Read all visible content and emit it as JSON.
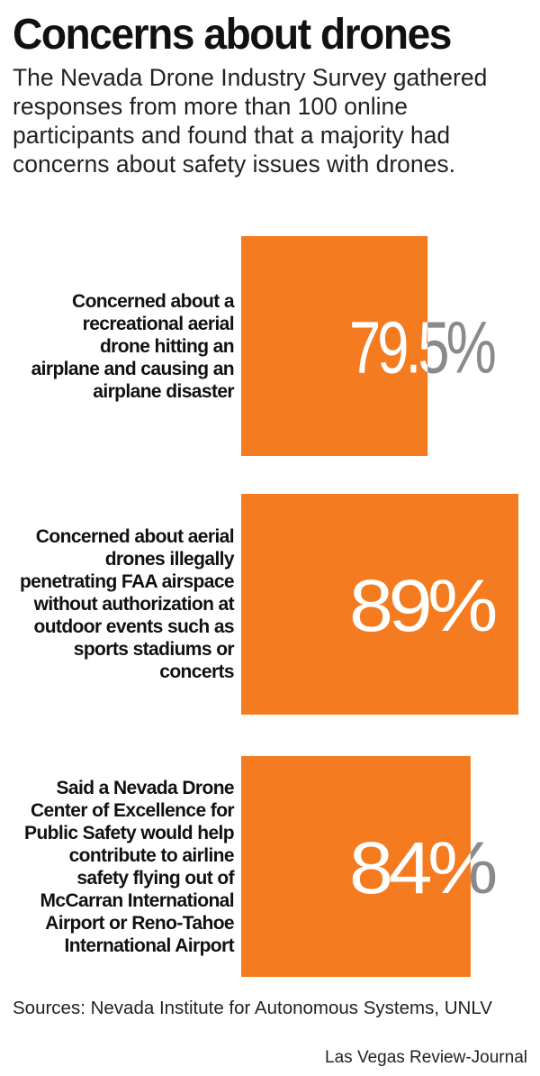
{
  "chart_data": {
    "type": "bar",
    "orientation": "horizontal",
    "title": "Concerns about drones",
    "subtitle": "The Nevada Drone Industry Survey gathered responses from more than 100 online participants and found that a majority had concerns about safety issues with drones.",
    "categories": [
      "Concerned about a recreational aerial drone hitting an airplane and causing an airplane disaster",
      "Concerned about aerial drones illegally penetrating FAA airspace without authorization at outdoor events such as sports stadiums or concerts",
      "Said a Nevada Drone Center of Excellence for Public Safety would help contribute to airline safety flying out of McCarran International Airport or Reno-Tahoe International Airport"
    ],
    "category_lines": [
      [
        "Concerned about a",
        "recreational aerial",
        "drone hitting an",
        "airplane and causing an",
        "airplane disaster"
      ],
      [
        "Concerned about aerial",
        "drones illegally",
        "penetrating FAA airspace",
        "without authorization at",
        "outdoor events such as",
        "sports stadiums or",
        "concerts"
      ],
      [
        "Said a Nevada Drone",
        "Center of Excellence for",
        "Public Safety would help",
        "contribute to airline",
        "safety flying out of",
        "McCarran International",
        "Airport or Reno-Tahoe",
        "International Airport"
      ]
    ],
    "values": [
      79.5,
      89,
      84
    ],
    "value_labels": [
      "79.5%",
      "89%",
      "84%"
    ],
    "bar_color": "#f47b20",
    "label_color_outside": "#8a8a8c",
    "label_color_inside": "#ffffff",
    "source": "Sources: Nevada Institute for Autonomous Systems, UNLV",
    "credit": "Las Vegas Review-Journal"
  }
}
